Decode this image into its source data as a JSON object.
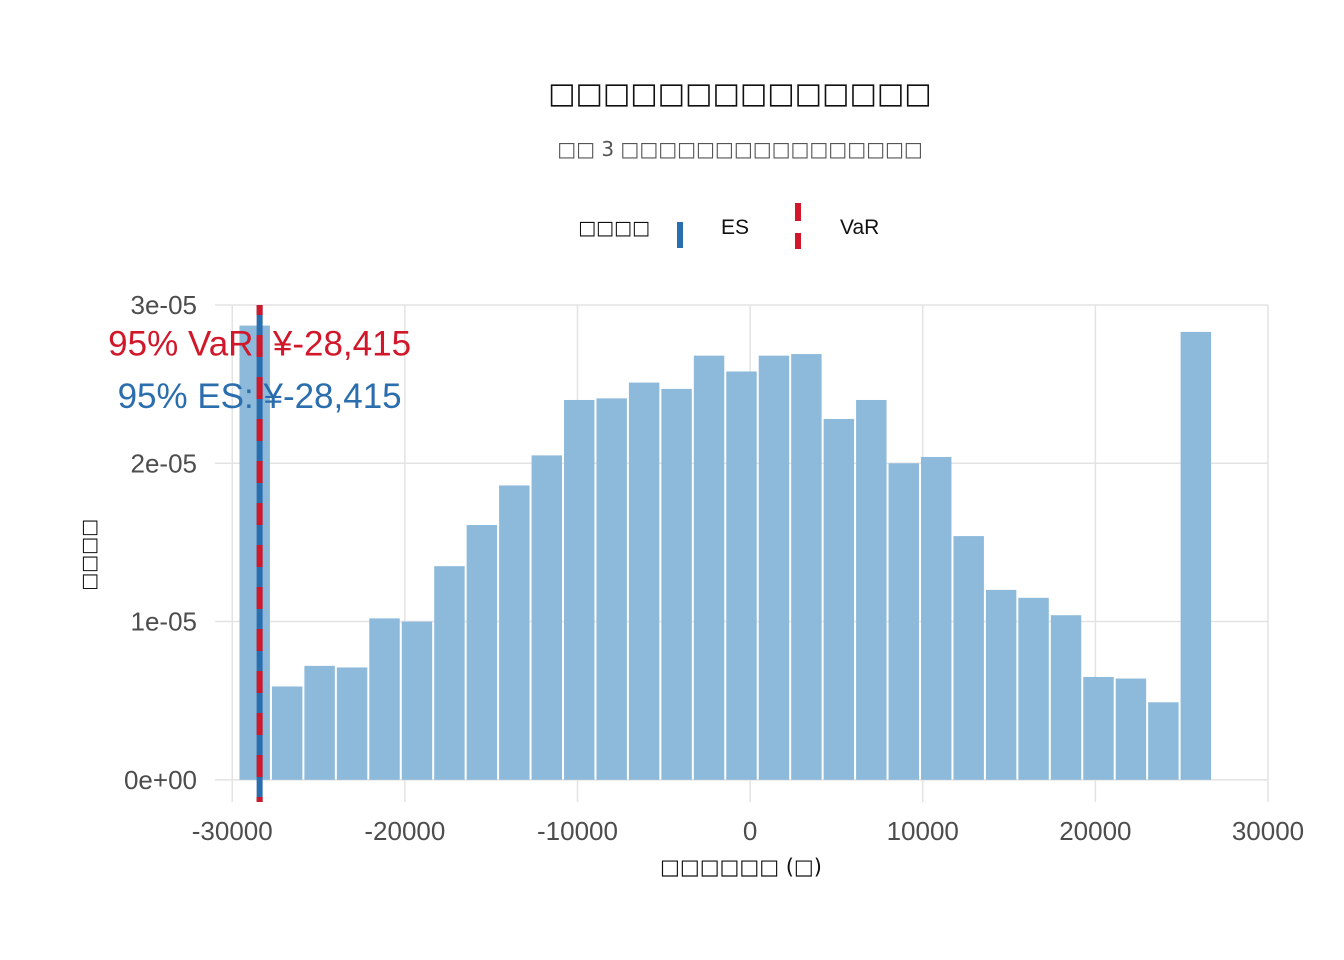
{
  "chart_data": {
    "type": "bar",
    "title": "□□□□□□□□□□□□□□",
    "subtitle": "□□ 3 □□□□□□□□□□□□□□□□",
    "xlabel": "□□□□□□ (□)",
    "ylabel": "□□□□",
    "legend": {
      "title": "□□□□",
      "position": "top",
      "entries": [
        {
          "label": "ES",
          "color": "#2b6ead",
          "linetype": "solid"
        },
        {
          "label": "VaR",
          "color": "#d0182a",
          "linetype": "dashed"
        }
      ]
    },
    "xlim": [
      -31000,
      30000
    ],
    "ylim": [
      -1.4e-06,
      3e-05
    ],
    "x_ticks": [
      -30000,
      -20000,
      -10000,
      0,
      10000,
      20000,
      30000
    ],
    "x_tick_labels": [
      "-30000",
      "-20000",
      "-10000",
      "0",
      "10000",
      "20000",
      "30000"
    ],
    "y_ticks": [
      0,
      1e-05,
      2e-05,
      3e-05
    ],
    "y_tick_labels": [
      "0e+00",
      "1e-05",
      "2e-05",
      "3e-05"
    ],
    "grid": true,
    "bar_color": "#8dbadb",
    "bin_width": 1880,
    "bins": [
      {
        "x": -28700,
        "y": 2.87e-05
      },
      {
        "x": -26820,
        "y": 5.9e-06
      },
      {
        "x": -24940,
        "y": 7.2e-06
      },
      {
        "x": -23060,
        "y": 7.1e-06
      },
      {
        "x": -21180,
        "y": 1.02e-05
      },
      {
        "x": -19300,
        "y": 1e-05
      },
      {
        "x": -17420,
        "y": 1.35e-05
      },
      {
        "x": -15540,
        "y": 1.61e-05
      },
      {
        "x": -13660,
        "y": 1.86e-05
      },
      {
        "x": -11780,
        "y": 2.05e-05
      },
      {
        "x": -9900,
        "y": 2.4e-05
      },
      {
        "x": -8020,
        "y": 2.41e-05
      },
      {
        "x": -6140,
        "y": 2.51e-05
      },
      {
        "x": -4260,
        "y": 2.47e-05
      },
      {
        "x": -2380,
        "y": 2.68e-05
      },
      {
        "x": -500,
        "y": 2.58e-05
      },
      {
        "x": 1380,
        "y": 2.68e-05
      },
      {
        "x": 3260,
        "y": 2.69e-05
      },
      {
        "x": 5140,
        "y": 2.28e-05
      },
      {
        "x": 7020,
        "y": 2.4e-05
      },
      {
        "x": 8900,
        "y": 2e-05
      },
      {
        "x": 10780,
        "y": 2.04e-05
      },
      {
        "x": 12660,
        "y": 1.54e-05
      },
      {
        "x": 14540,
        "y": 1.2e-05
      },
      {
        "x": 16420,
        "y": 1.15e-05
      },
      {
        "x": 18300,
        "y": 1.04e-05
      },
      {
        "x": 20180,
        "y": 6.5e-06
      },
      {
        "x": 22060,
        "y": 6.4e-06
      },
      {
        "x": 23940,
        "y": 4.9e-06
      },
      {
        "x": 25820,
        "y": 2.83e-05
      }
    ],
    "reference_lines": [
      {
        "name": "ES",
        "x": -28415,
        "color": "#2b6ead"
      },
      {
        "name": "VaR",
        "x": -28415,
        "color": "#d0182a"
      }
    ],
    "annotations": [
      {
        "text": "95% VaR: ¥-28,415",
        "color": "#d0182a",
        "x": -28415,
        "y": 2.68e-05
      },
      {
        "text": "95% ES: ¥-28,415",
        "color": "#2b6ead",
        "x": -28415,
        "y": 2.35e-05
      }
    ]
  }
}
